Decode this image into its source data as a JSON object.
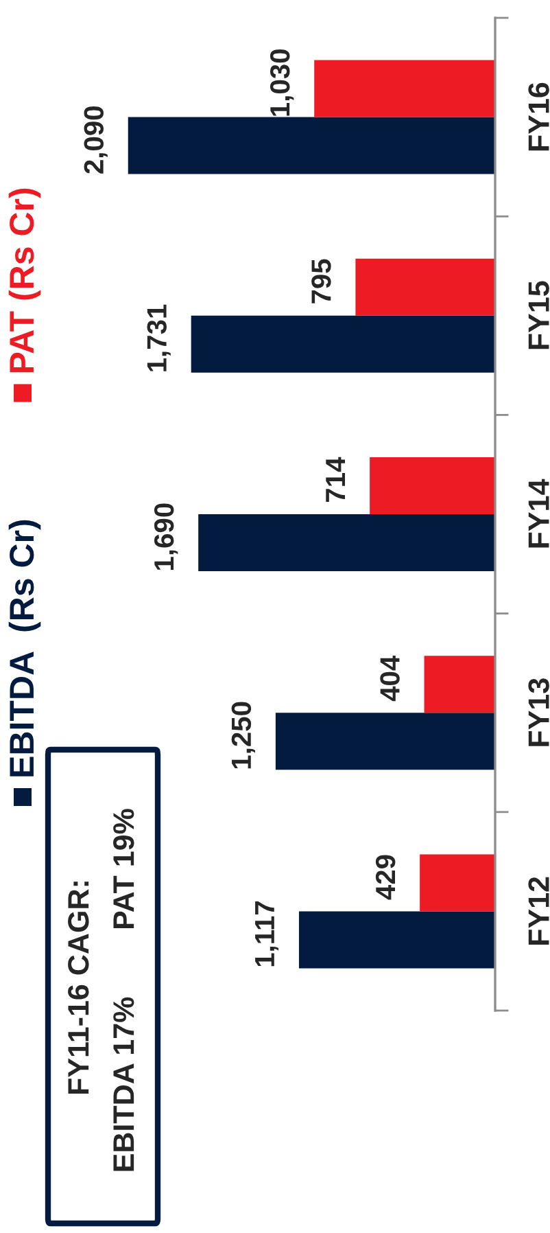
{
  "chart_data": {
    "type": "bar",
    "orientation": "horizontal",
    "categories": [
      "FY16",
      "FY15",
      "FY14",
      "FY13",
      "FY12"
    ],
    "series": [
      {
        "name": "EBITDA  (Rs Cr)",
        "color": "#021b3f",
        "values": [
          2090,
          1731,
          1690,
          1250,
          1117
        ],
        "value_labels": [
          "2,090",
          "1,731",
          "1,690",
          "1,250",
          "1,117"
        ]
      },
      {
        "name": "PAT (Rs Cr)",
        "color": "#ed1c24",
        "values": [
          1030,
          795,
          714,
          404,
          429
        ],
        "value_labels": [
          "1,030",
          "795",
          "714",
          "404",
          "429"
        ]
      }
    ],
    "legend": "left",
    "tick_labels": "y",
    "annotations": [
      "FY11-16 CAGR:",
      "EBITDA 17%",
      "PAT 19%"
    ]
  }
}
